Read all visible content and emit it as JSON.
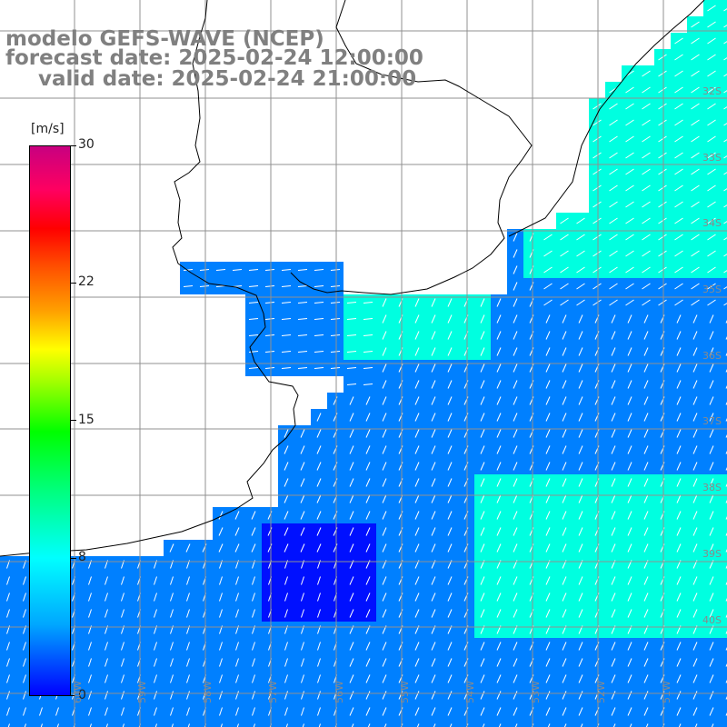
{
  "title": {
    "line1": "modelo GEFS-WAVE (NCEP)",
    "line2": "forecast date: 2025-02-24 12:00:00",
    "line3": "valid date: 2025-02-24 21:00:00"
  },
  "colorbar": {
    "unit": "[m/s]",
    "ticks": [
      "30",
      "22",
      "15",
      "8",
      "0"
    ],
    "tick_values": [
      30,
      22,
      15,
      8,
      0
    ],
    "min": 0,
    "max": 30,
    "colors": [
      "#0000ff",
      "#00a8ff",
      "#00ffff",
      "#00ff80",
      "#00ff00",
      "#ffff00",
      "#ff0000",
      "#c80080"
    ]
  },
  "lat_labels": [
    "32S",
    "33S",
    "34S",
    "35S",
    "36S",
    "37S",
    "38S",
    "39S",
    "40S"
  ],
  "lon_labels": [
    "60W",
    "59W",
    "58W",
    "57W",
    "56W",
    "55W",
    "54W",
    "53W",
    "52W",
    "51W"
  ],
  "colors": {
    "land": "#ffffff",
    "coast": "#000000",
    "grid": "#909090",
    "arrow": "#ffffff"
  }
}
